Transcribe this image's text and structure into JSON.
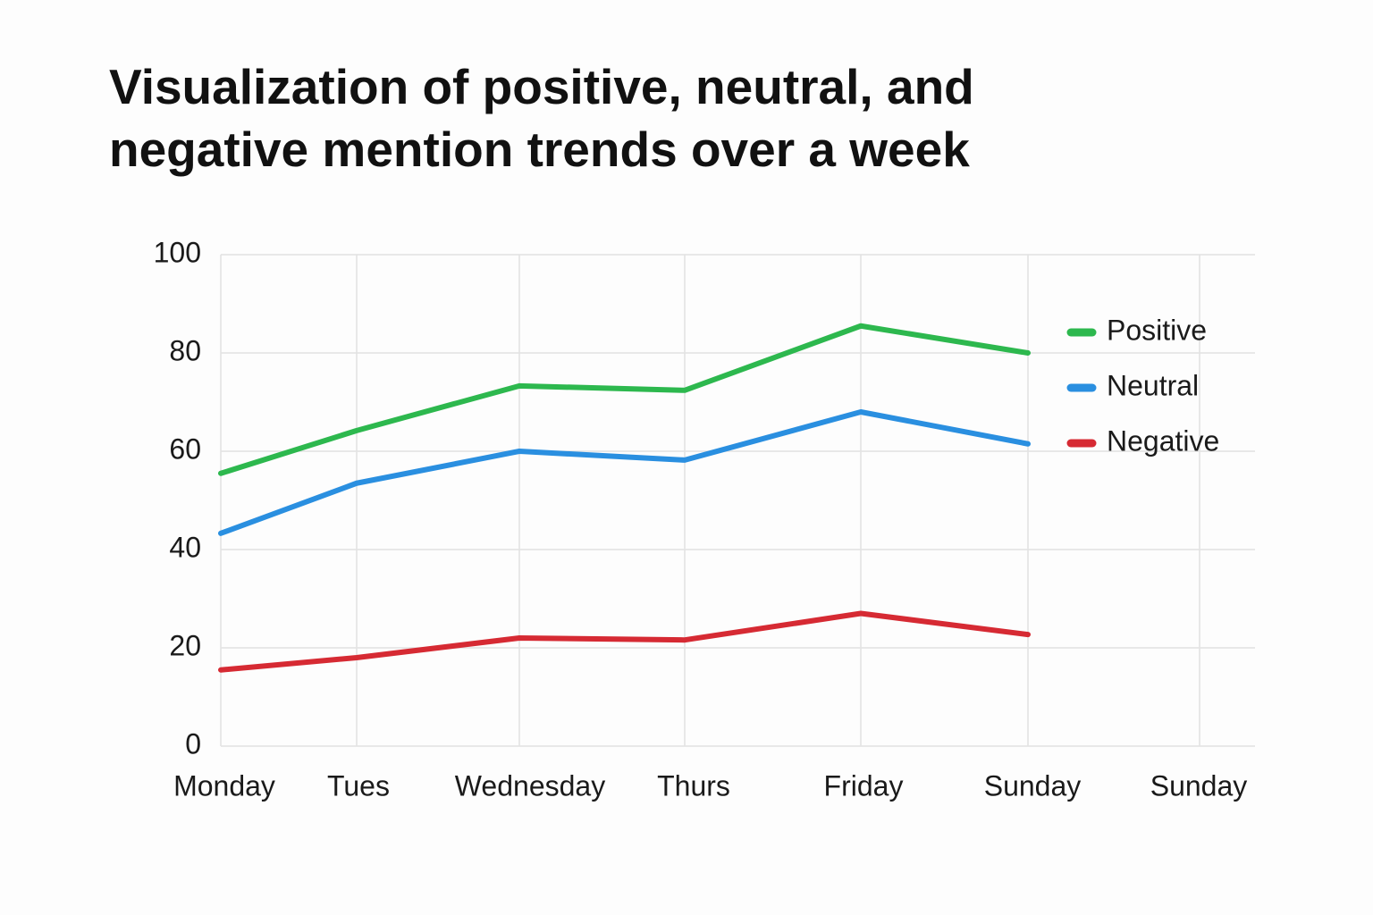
{
  "chart_data": {
    "type": "line",
    "title": "Visualization of positive, neutral, and negative mention trends over a week",
    "categories": [
      "Monday",
      "Tues",
      "Wednesday",
      "Thurs",
      "Friday",
      "Sunday",
      "Sunday"
    ],
    "series": [
      {
        "name": "Positive",
        "color": "#2db84e",
        "values": [
          55.5,
          64.2,
          73.3,
          72.4,
          85.5,
          80,
          null
        ]
      },
      {
        "name": "Neutral",
        "color": "#2a8fe0",
        "values": [
          43.3,
          53.5,
          60,
          58.2,
          68,
          61.5,
          null
        ]
      },
      {
        "name": "Negative",
        "color": "#d62a33",
        "values": [
          15.5,
          18,
          22,
          21.6,
          27,
          22.7,
          null
        ]
      }
    ],
    "ylim": [
      0,
      100
    ],
    "yticks": [
      0,
      20,
      40,
      60,
      80,
      100
    ],
    "grid": true,
    "legend": "right"
  }
}
